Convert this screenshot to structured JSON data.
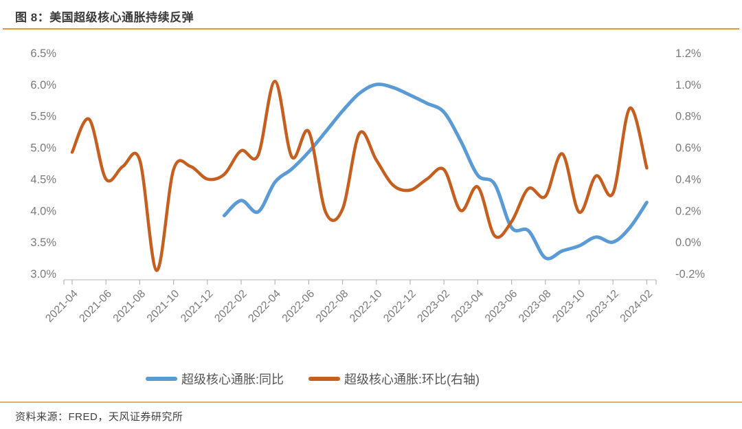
{
  "header": {
    "title": "图 8：美国超级核心通胀持续反弹"
  },
  "footer": {
    "source": "资料来源：FRED，天风证券研究所"
  },
  "colors": {
    "title_rule": "#e2983a",
    "source_rule": "#eda95f",
    "axis_line": "#c2c2c2",
    "tick_mark": "#b5b5b5",
    "axis_label": "#7a7a7a",
    "series_blue": "#5b9bd5",
    "series_orange": "#c55f20"
  },
  "legend": {
    "items": [
      {
        "label": "超级核心通胀:同比",
        "color": "#5b9bd5"
      },
      {
        "label": "超级核心通胀:环比(右轴)",
        "color": "#c55f20"
      }
    ]
  },
  "chart_data": {
    "type": "line",
    "title": "美国超级核心通胀持续反弹",
    "grid": false,
    "legend_position": "bottom",
    "x": [
      "2021-04",
      "2021-05",
      "2021-06",
      "2021-07",
      "2021-08",
      "2021-09",
      "2021-10",
      "2021-11",
      "2021-12",
      "2022-01",
      "2022-02",
      "2022-03",
      "2022-04",
      "2022-05",
      "2022-06",
      "2022-07",
      "2022-08",
      "2022-09",
      "2022-10",
      "2022-11",
      "2022-12",
      "2023-01",
      "2023-02",
      "2023-03",
      "2023-04",
      "2023-05",
      "2023-06",
      "2023-07",
      "2023-08",
      "2023-09",
      "2023-10",
      "2023-11",
      "2023-12",
      "2024-01",
      "2024-02"
    ],
    "x_tick_every": 2,
    "x_tick_labels": [
      "2021-04",
      "2021-06",
      "2021-08",
      "2021-10",
      "2021-12",
      "2022-02",
      "2022-04",
      "2022-06",
      "2022-08",
      "2022-10",
      "2022-12",
      "2023-02",
      "2023-04",
      "2023-06",
      "2023-08",
      "2023-10",
      "2023-12",
      "2024-02"
    ],
    "left_axis": {
      "min": 3.0,
      "max": 6.5,
      "ticks": [
        "6.5%",
        "6.0%",
        "5.5%",
        "5.0%",
        "4.5%",
        "4.0%",
        "3.5%",
        "3.0%"
      ]
    },
    "right_axis": {
      "min": -0.2,
      "max": 1.2,
      "ticks": [
        "1.2%",
        "1.0%",
        "0.8%",
        "0.6%",
        "0.4%",
        "0.2%",
        "0.0%",
        "-0.2%"
      ]
    },
    "series": [
      {
        "name": "超级核心通胀:同比",
        "axis": "left",
        "color": "#5b9bd5",
        "line_width": 5,
        "values": [
          null,
          null,
          null,
          null,
          null,
          null,
          null,
          null,
          null,
          3.92,
          4.16,
          3.98,
          4.45,
          4.66,
          4.93,
          5.25,
          5.58,
          5.86,
          6.0,
          5.95,
          5.83,
          5.7,
          5.56,
          5.1,
          4.56,
          4.42,
          3.73,
          3.68,
          3.25,
          3.36,
          3.44,
          3.58,
          3.5,
          3.73,
          4.13
        ]
      },
      {
        "name": "超级核心通胀:环比(右轴)",
        "axis": "right",
        "color": "#c55f20",
        "line_width": 4.5,
        "values": [
          0.57,
          0.78,
          0.4,
          0.48,
          0.52,
          -0.18,
          0.46,
          0.48,
          0.4,
          0.43,
          0.58,
          0.55,
          1.02,
          0.54,
          0.7,
          0.19,
          0.21,
          0.69,
          0.52,
          0.36,
          0.33,
          0.4,
          0.46,
          0.2,
          0.35,
          0.04,
          0.13,
          0.34,
          0.29,
          0.56,
          0.19,
          0.42,
          0.31,
          0.85,
          0.47
        ]
      }
    ]
  }
}
